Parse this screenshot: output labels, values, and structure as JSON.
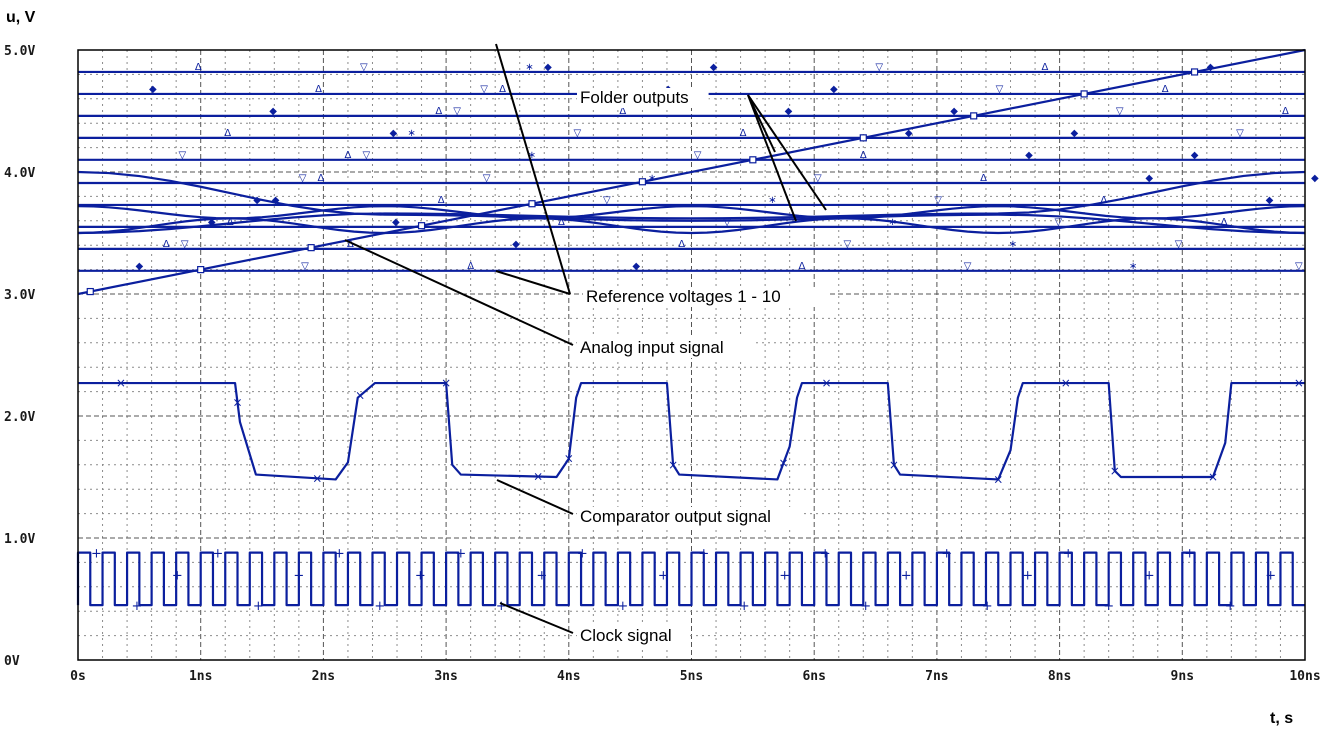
{
  "chart_data": {
    "type": "line",
    "ylabel": "u, V",
    "xlabel": "t, s",
    "xlim": [
      0,
      10
    ],
    "ylim": [
      0,
      5
    ],
    "x_ticks": [
      "0s",
      "1ns",
      "2ns",
      "3ns",
      "4ns",
      "5ns",
      "6ns",
      "7ns",
      "8ns",
      "9ns",
      "10ns"
    ],
    "y_ticks": [
      "0V",
      "1.0V",
      "2.0V",
      "3.0V",
      "4.0V",
      "5.0V"
    ],
    "grid": true,
    "series_color": "#0b1f9e",
    "reference_levels": [
      3.19,
      3.37,
      3.55,
      3.73,
      3.91,
      4.1,
      4.28,
      4.46,
      4.64,
      4.82
    ],
    "analog_input": {
      "x": [
        0,
        10
      ],
      "y": [
        3.0,
        5.0
      ]
    },
    "folder_outputs": [
      {
        "x": [
          0,
          1.25,
          2.5,
          3.75,
          5,
          6.25,
          7.5,
          8.75,
          10
        ],
        "y": [
          3.5,
          3.62,
          3.72,
          3.62,
          3.5,
          3.62,
          3.72,
          3.62,
          3.5
        ]
      },
      {
        "x": [
          0,
          1.25,
          2.5,
          3.75,
          5,
          6.25,
          7.5,
          8.75,
          10
        ],
        "y": [
          3.72,
          3.62,
          3.5,
          3.62,
          3.72,
          3.62,
          3.5,
          3.62,
          3.72
        ]
      },
      {
        "x": [
          0,
          2.5,
          5,
          7.5,
          10
        ],
        "y": [
          4.0,
          3.65,
          3.6,
          3.65,
          3.5
        ]
      },
      {
        "x": [
          0,
          2.5,
          5,
          7.5,
          10
        ],
        "y": [
          3.5,
          3.66,
          3.62,
          3.66,
          4.0
        ]
      }
    ],
    "comparator_output": {
      "x": [
        0,
        1.28,
        1.32,
        1.45,
        2.1,
        2.2,
        2.28,
        2.42,
        3.0,
        3.05,
        3.12,
        3.9,
        4.0,
        4.06,
        4.1,
        4.8,
        4.85,
        4.9,
        5.7,
        5.8,
        5.86,
        5.9,
        6.6,
        6.65,
        6.7,
        7.5,
        7.6,
        7.66,
        7.7,
        8.4,
        8.45,
        8.5,
        9.25,
        9.35,
        9.4,
        10.0
      ],
      "y": [
        2.27,
        2.27,
        1.95,
        1.52,
        1.48,
        1.62,
        2.15,
        2.27,
        2.27,
        1.6,
        1.52,
        1.5,
        1.65,
        2.15,
        2.27,
        2.27,
        1.6,
        1.52,
        1.48,
        1.75,
        2.15,
        2.27,
        2.27,
        1.6,
        1.52,
        1.48,
        1.72,
        2.15,
        2.27,
        2.27,
        1.55,
        1.5,
        1.5,
        1.78,
        2.27,
        2.27
      ]
    },
    "clock": {
      "period": 0.2,
      "low": 0.45,
      "high": 0.88,
      "x_start": 0,
      "x_end": 10
    },
    "annotations": [
      {
        "text": "Folder outputs"
      },
      {
        "text": "Reference voltages  1 - 10"
      },
      {
        "text": "Analog input signal"
      },
      {
        "text": "Comparator output signal"
      },
      {
        "text": "Clock signal"
      }
    ]
  }
}
